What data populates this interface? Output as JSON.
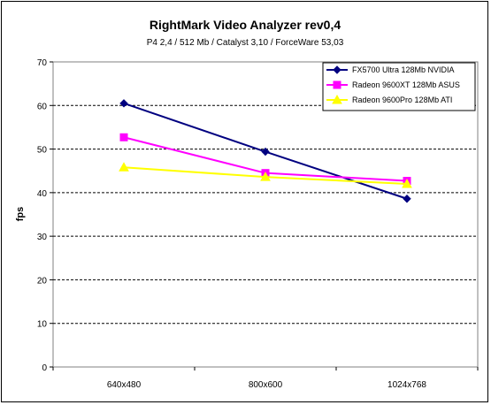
{
  "chart_data": {
    "type": "line",
    "title": "RightMark Video Analyzer rev0,4",
    "subtitle": "P4 2,4 / 512 Mb / Catalyst 3,10 / ForceWare 53,03",
    "xlabel": "",
    "ylabel": "fps",
    "ylim": [
      0,
      70
    ],
    "ytick_step": 10,
    "grid": "horizontal-dashed",
    "legend_position": "top-right",
    "categories": [
      "640x480",
      "800x600",
      "1024x768"
    ],
    "series": [
      {
        "name": "FX5700 Ultra 128Mb NVIDIA",
        "values": [
          60.5,
          49.4,
          38.6
        ],
        "color": "#000080",
        "marker": "diamond"
      },
      {
        "name": "Radeon 9600XT 128Mb ASUS",
        "values": [
          52.7,
          44.5,
          42.7
        ],
        "color": "#ff00ff",
        "marker": "square"
      },
      {
        "name": "Radeon 9600Pro 128Mb ATI",
        "values": [
          45.8,
          43.6,
          42.0
        ],
        "color": "#ffff00",
        "marker": "triangle"
      }
    ]
  }
}
